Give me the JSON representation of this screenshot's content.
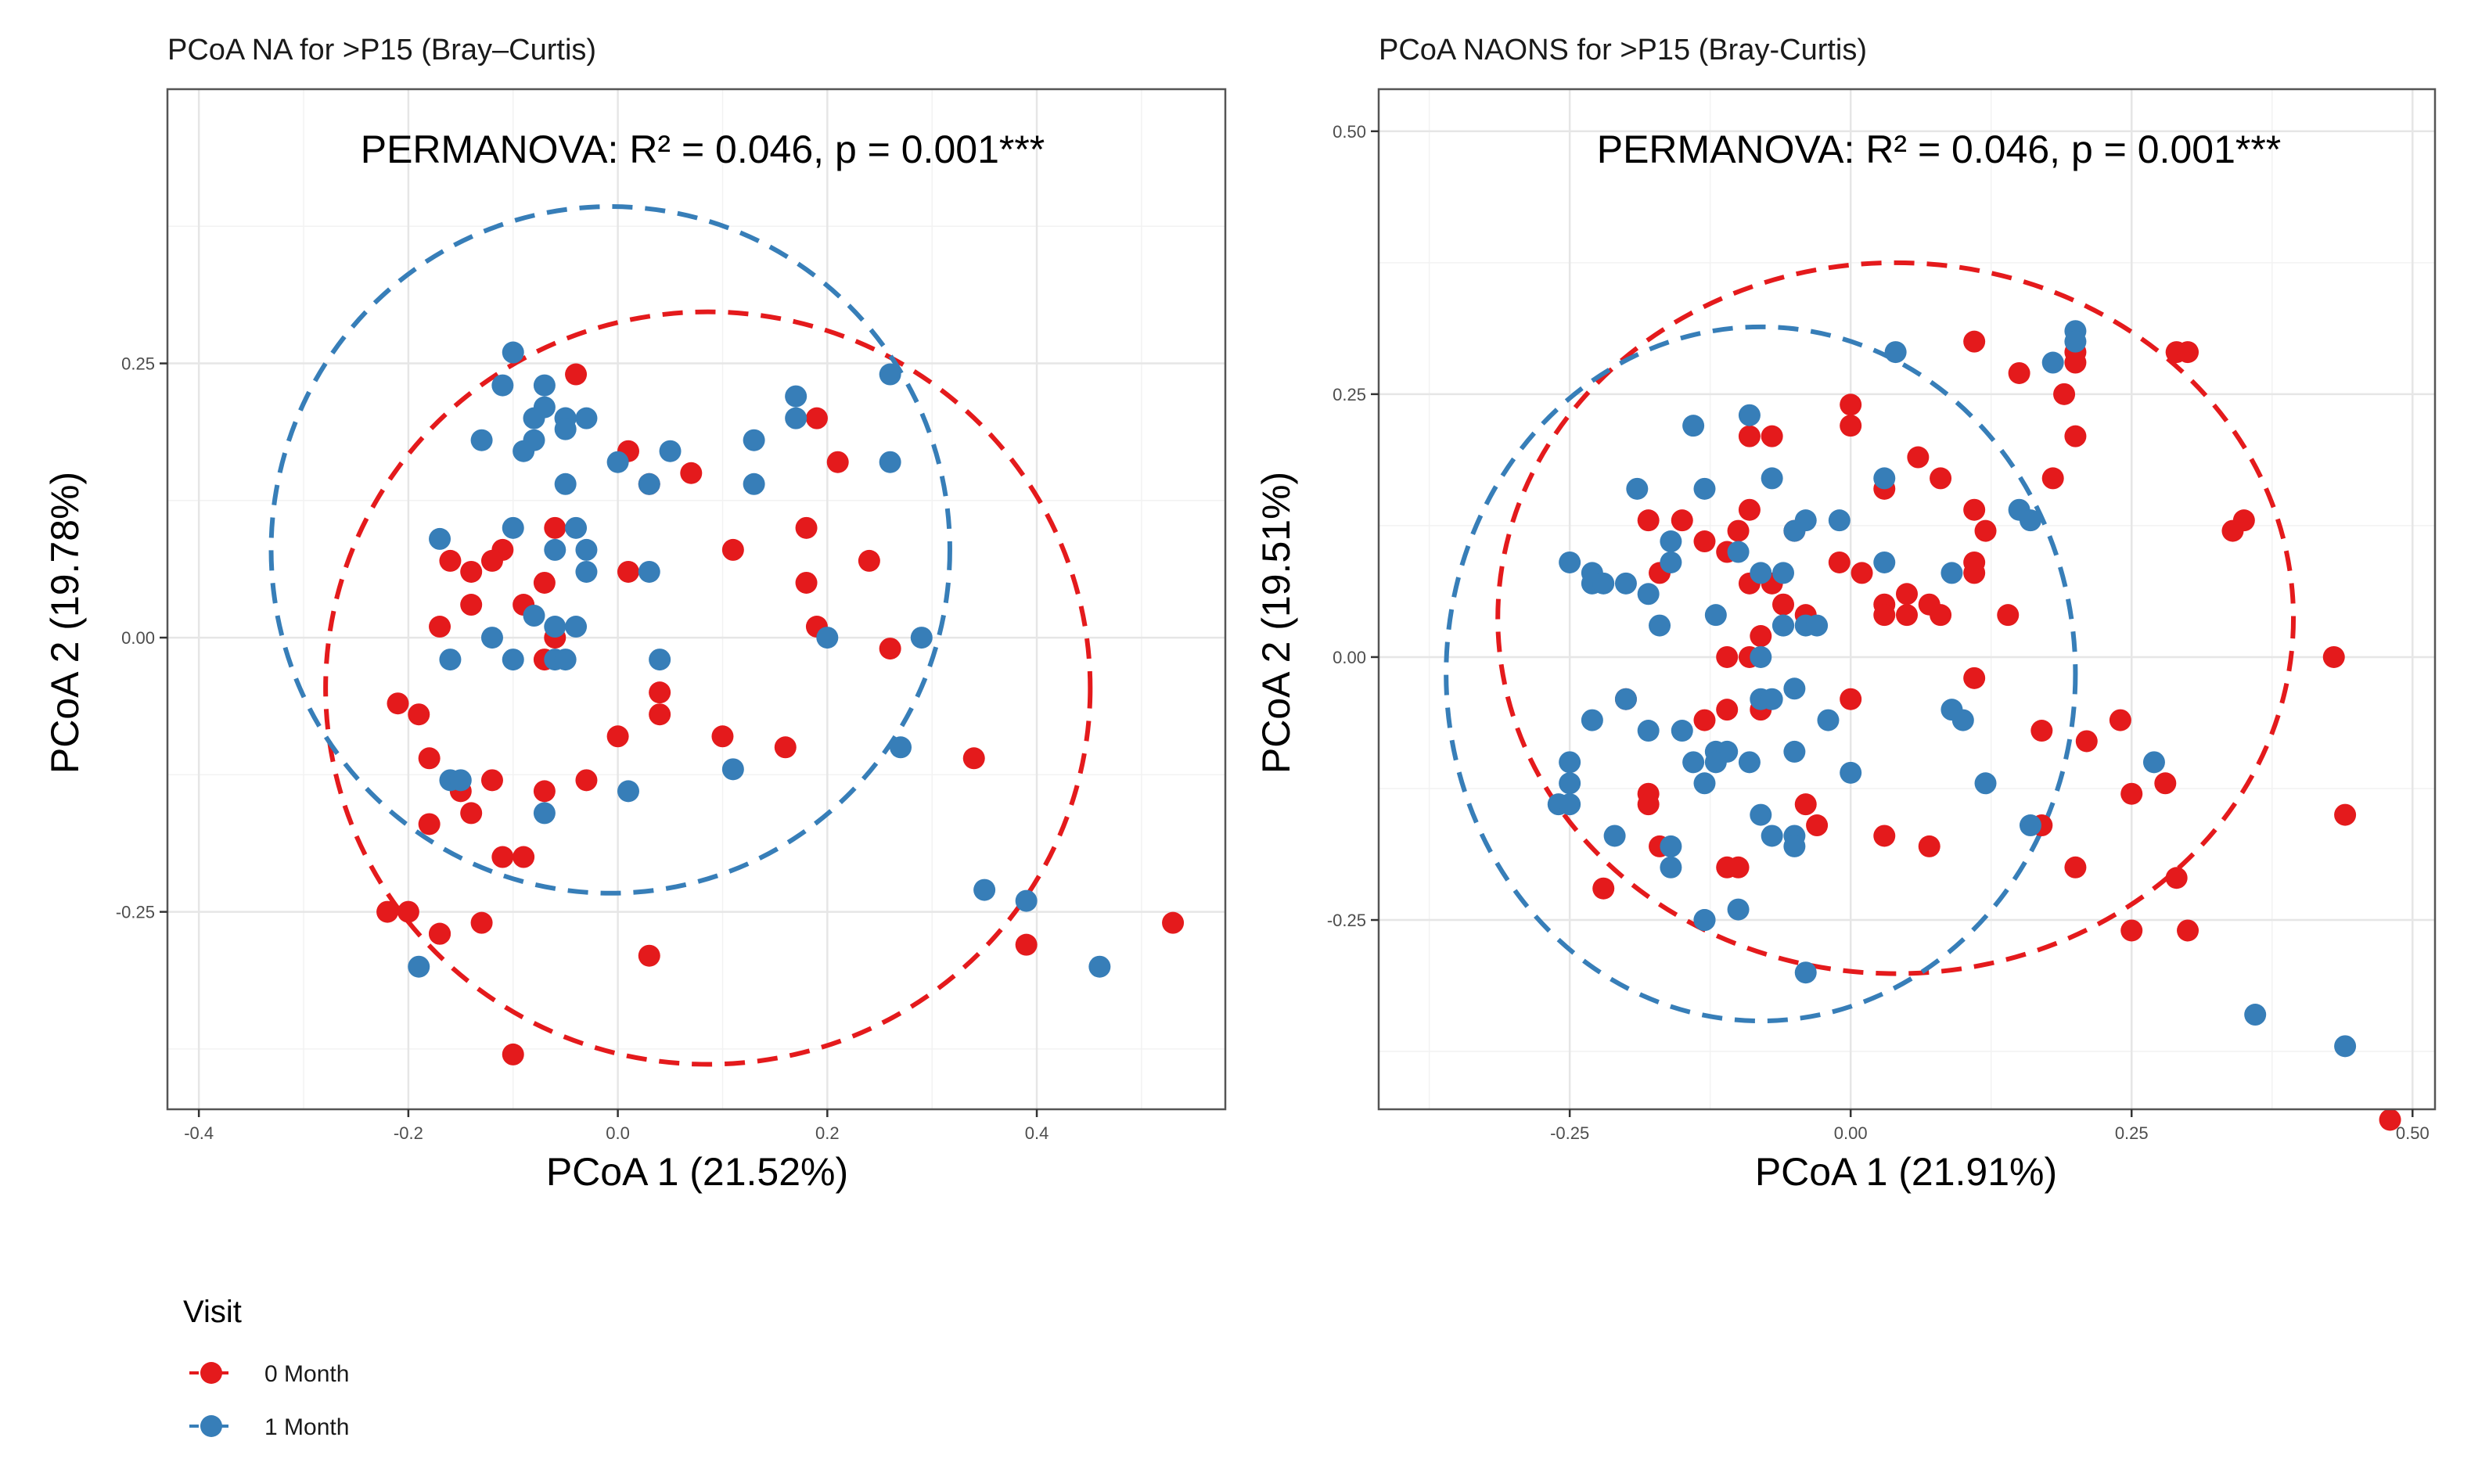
{
  "colors": {
    "visit_0": "#E41A1C",
    "visit_1": "#377EB8",
    "grid_major": "#e6e6e6",
    "grid_minor": "#f2f2f2",
    "frame": "#555555"
  },
  "legend": {
    "title": "Visit",
    "entries": [
      {
        "label": "0 Month",
        "color": "#E41A1C"
      },
      {
        "label": "1 Month",
        "color": "#377EB8"
      }
    ]
  },
  "chart_data": [
    {
      "type": "scatter",
      "title": "PCoA NA for >P15 (Bray–Curtis)",
      "annotation": "PERMANOVA: R² = 0.046, p = 0.001***",
      "xlabel": "PCoA 1 (21.52%)",
      "ylabel": "PCoA 2 (19.78%)",
      "xlim": [
        -0.43,
        0.58
      ],
      "ylim": [
        -0.43,
        0.5
      ],
      "xticks": [
        -0.4,
        -0.2,
        0.0,
        0.2,
        0.4
      ],
      "xtick_labels": [
        "-0.4",
        "-0.2",
        "0.0",
        "0.2",
        "0.4"
      ],
      "yticks": [
        -0.25,
        0.0,
        0.25
      ],
      "ytick_labels": [
        "-0.25",
        "0.00",
        "0.25"
      ],
      "grid": true,
      "ellipses": [
        {
          "series": "0 Month",
          "cx": 0.086,
          "cy": -0.046,
          "rx": 0.365,
          "ry": 0.343
        },
        {
          "series": "1 Month",
          "cx": -0.007,
          "cy": 0.08,
          "rx": 0.324,
          "ry": 0.313
        }
      ],
      "series": [
        {
          "name": "0 Month",
          "points": [
            [
              -0.16,
              0.07
            ],
            [
              -0.14,
              0.06
            ],
            [
              -0.11,
              0.08
            ],
            [
              -0.12,
              0.07
            ],
            [
              -0.14,
              0.03
            ],
            [
              -0.17,
              0.01
            ],
            [
              -0.09,
              0.03
            ],
            [
              -0.07,
              0.05
            ],
            [
              -0.06,
              0.1
            ],
            [
              -0.04,
              0.24
            ],
            [
              0.01,
              0.17
            ],
            [
              0.03,
              0.14
            ],
            [
              0.07,
              0.15
            ],
            [
              0.01,
              0.06
            ],
            [
              0.19,
              0.2
            ],
            [
              0.21,
              0.16
            ],
            [
              0.18,
              0.1
            ],
            [
              0.18,
              0.05
            ],
            [
              0.24,
              0.07
            ],
            [
              0.19,
              0.01
            ],
            [
              0.26,
              -0.01
            ],
            [
              0.11,
              0.08
            ],
            [
              -0.06,
              0.0
            ],
            [
              -0.07,
              -0.02
            ],
            [
              0.04,
              -0.05
            ],
            [
              0.04,
              -0.07
            ],
            [
              0.0,
              -0.09
            ],
            [
              0.1,
              -0.09
            ],
            [
              0.16,
              -0.1
            ],
            [
              -0.03,
              -0.13
            ],
            [
              -0.21,
              -0.06
            ],
            [
              -0.19,
              -0.07
            ],
            [
              -0.18,
              -0.11
            ],
            [
              -0.15,
              -0.14
            ],
            [
              -0.14,
              -0.16
            ],
            [
              -0.12,
              -0.13
            ],
            [
              -0.18,
              -0.17
            ],
            [
              -0.07,
              -0.14
            ],
            [
              -0.11,
              -0.2
            ],
            [
              -0.09,
              -0.2
            ],
            [
              -0.22,
              -0.25
            ],
            [
              -0.2,
              -0.25
            ],
            [
              -0.17,
              -0.27
            ],
            [
              -0.17,
              -0.27
            ],
            [
              -0.13,
              -0.26
            ],
            [
              0.03,
              -0.29
            ],
            [
              0.34,
              -0.11
            ],
            [
              0.39,
              -0.28
            ],
            [
              0.53,
              -0.26
            ],
            [
              -0.1,
              -0.38
            ]
          ]
        },
        {
          "name": "1 Month",
          "points": [
            [
              -0.1,
              0.26
            ],
            [
              -0.11,
              0.23
            ],
            [
              -0.07,
              0.23
            ],
            [
              -0.07,
              0.21
            ],
            [
              -0.08,
              0.2
            ],
            [
              -0.05,
              0.2
            ],
            [
              -0.05,
              0.2
            ],
            [
              -0.03,
              0.2
            ],
            [
              -0.05,
              0.19
            ],
            [
              -0.13,
              0.18
            ],
            [
              -0.08,
              0.18
            ],
            [
              -0.09,
              0.17
            ],
            [
              0.0,
              0.16
            ],
            [
              0.05,
              0.17
            ],
            [
              0.03,
              0.14
            ],
            [
              -0.05,
              0.14
            ],
            [
              0.17,
              0.22
            ],
            [
              0.17,
              0.2
            ],
            [
              0.13,
              0.18
            ],
            [
              0.13,
              0.14
            ],
            [
              0.26,
              0.24
            ],
            [
              0.26,
              0.16
            ],
            [
              -0.04,
              0.1
            ],
            [
              -0.06,
              0.08
            ],
            [
              -0.03,
              0.08
            ],
            [
              -0.03,
              0.06
            ],
            [
              0.03,
              0.06
            ],
            [
              -0.17,
              0.09
            ],
            [
              -0.1,
              0.1
            ],
            [
              -0.08,
              0.02
            ],
            [
              -0.16,
              -0.02
            ],
            [
              -0.12,
              0.0
            ],
            [
              -0.1,
              -0.02
            ],
            [
              -0.06,
              -0.02
            ],
            [
              -0.05,
              -0.02
            ],
            [
              -0.06,
              0.01
            ],
            [
              -0.04,
              0.01
            ],
            [
              0.04,
              -0.02
            ],
            [
              0.2,
              0.0
            ],
            [
              0.29,
              0.0
            ],
            [
              0.27,
              -0.1
            ],
            [
              0.11,
              -0.12
            ],
            [
              0.01,
              -0.14
            ],
            [
              -0.16,
              -0.13
            ],
            [
              -0.15,
              -0.13
            ],
            [
              -0.07,
              -0.16
            ],
            [
              -0.19,
              -0.3
            ],
            [
              0.35,
              -0.23
            ],
            [
              0.39,
              -0.24
            ],
            [
              0.46,
              -0.3
            ]
          ]
        }
      ]
    },
    {
      "type": "scatter",
      "title": "PCoA NAONS for >P15 (Bray-Curtis)",
      "annotation": "PERMANOVA: R² = 0.046, p = 0.001***",
      "xlabel": "PCoA 1 (21.91%)",
      "ylabel": "PCoA 2 (19.51%)",
      "xlim": [
        -0.42,
        0.52
      ],
      "ylim": [
        -0.43,
        0.54
      ],
      "xticks": [
        -0.25,
        0.0,
        0.25,
        0.5
      ],
      "xtick_labels": [
        "-0.25",
        "0.00",
        "0.25",
        "0.50"
      ],
      "yticks": [
        -0.25,
        0.0,
        0.25,
        0.5
      ],
      "ytick_labels": [
        "-0.25",
        "0.00",
        "0.25",
        "0.50"
      ],
      "grid": true,
      "ellipses": [
        {
          "series": "0 Month",
          "cx": 0.04,
          "cy": 0.037,
          "rx": 0.354,
          "ry": 0.338
        },
        {
          "series": "1 Month",
          "cx": -0.08,
          "cy": -0.016,
          "rx": 0.28,
          "ry": 0.33
        }
      ],
      "series": [
        {
          "name": "0 Month",
          "points": [
            [
              0.11,
              0.3
            ],
            [
              0.15,
              0.27
            ],
            [
              0.2,
              0.29
            ],
            [
              0.2,
              0.28
            ],
            [
              0.19,
              0.25
            ],
            [
              0.2,
              0.21
            ],
            [
              0.18,
              0.17
            ],
            [
              0.29,
              0.29
            ],
            [
              0.3,
              0.29
            ],
            [
              0.34,
              0.12
            ],
            [
              0.35,
              0.13
            ],
            [
              0.0,
              0.24
            ],
            [
              0.0,
              0.22
            ],
            [
              0.06,
              0.19
            ],
            [
              0.08,
              0.17
            ],
            [
              -0.09,
              0.21
            ],
            [
              -0.07,
              0.21
            ],
            [
              -0.09,
              0.14
            ],
            [
              -0.1,
              0.12
            ],
            [
              -0.05,
              0.12
            ],
            [
              0.03,
              0.16
            ],
            [
              0.11,
              0.14
            ],
            [
              0.12,
              0.12
            ],
            [
              -0.18,
              0.13
            ],
            [
              -0.15,
              0.13
            ],
            [
              -0.13,
              0.11
            ],
            [
              -0.11,
              0.1
            ],
            [
              -0.17,
              0.08
            ],
            [
              -0.09,
              0.07
            ],
            [
              -0.07,
              0.07
            ],
            [
              -0.08,
              0.02
            ],
            [
              -0.11,
              0.0
            ],
            [
              -0.09,
              0.0
            ],
            [
              -0.06,
              0.05
            ],
            [
              -0.04,
              0.04
            ],
            [
              -0.01,
              0.09
            ],
            [
              0.01,
              0.08
            ],
            [
              0.03,
              0.05
            ],
            [
              0.03,
              0.04
            ],
            [
              0.05,
              0.06
            ],
            [
              0.05,
              0.04
            ],
            [
              0.07,
              0.05
            ],
            [
              0.08,
              0.04
            ],
            [
              0.11,
              0.09
            ],
            [
              0.11,
              0.08
            ],
            [
              0.14,
              0.04
            ],
            [
              0.11,
              -0.02
            ],
            [
              0.17,
              -0.07
            ],
            [
              0.21,
              -0.08
            ],
            [
              0.24,
              -0.06
            ],
            [
              0.25,
              -0.13
            ],
            [
              0.28,
              -0.12
            ],
            [
              0.43,
              0.0
            ],
            [
              0.44,
              -0.15
            ],
            [
              0.29,
              -0.21
            ],
            [
              0.3,
              -0.26
            ],
            [
              0.25,
              -0.26
            ],
            [
              0.2,
              -0.2
            ],
            [
              0.17,
              -0.16
            ],
            [
              -0.2,
              -0.04
            ],
            [
              -0.13,
              -0.06
            ],
            [
              -0.11,
              -0.05
            ],
            [
              -0.08,
              -0.05
            ],
            [
              0.0,
              -0.04
            ],
            [
              -0.18,
              -0.13
            ],
            [
              -0.18,
              -0.14
            ],
            [
              -0.17,
              -0.18
            ],
            [
              -0.11,
              -0.2
            ],
            [
              -0.04,
              -0.14
            ],
            [
              -0.03,
              -0.16
            ],
            [
              0.03,
              -0.17
            ],
            [
              0.07,
              -0.18
            ],
            [
              -0.1,
              -0.2
            ],
            [
              -0.22,
              -0.22
            ],
            [
              0.48,
              -0.44
            ]
          ]
        },
        {
          "name": "1 Month",
          "points": [
            [
              0.04,
              0.29
            ],
            [
              0.2,
              0.31
            ],
            [
              0.2,
              0.3
            ],
            [
              0.18,
              0.28
            ],
            [
              -0.14,
              0.22
            ],
            [
              -0.09,
              0.23
            ],
            [
              -0.07,
              0.17
            ],
            [
              -0.19,
              0.16
            ],
            [
              -0.13,
              0.16
            ],
            [
              -0.16,
              0.11
            ],
            [
              -0.1,
              0.1
            ],
            [
              -0.08,
              0.08
            ],
            [
              -0.06,
              0.08
            ],
            [
              -0.05,
              0.12
            ],
            [
              -0.04,
              0.13
            ],
            [
              -0.01,
              0.13
            ],
            [
              0.03,
              0.17
            ],
            [
              0.03,
              0.09
            ],
            [
              0.09,
              0.08
            ],
            [
              0.15,
              0.14
            ],
            [
              0.16,
              0.13
            ],
            [
              -0.25,
              0.09
            ],
            [
              -0.23,
              0.08
            ],
            [
              -0.23,
              0.07
            ],
            [
              -0.22,
              0.07
            ],
            [
              -0.2,
              0.07
            ],
            [
              -0.18,
              0.06
            ],
            [
              -0.16,
              0.09
            ],
            [
              -0.17,
              0.03
            ],
            [
              -0.12,
              0.04
            ],
            [
              -0.08,
              0.0
            ],
            [
              -0.06,
              0.03
            ],
            [
              -0.04,
              0.03
            ],
            [
              -0.03,
              0.03
            ],
            [
              -0.06,
              0.03
            ],
            [
              -0.2,
              -0.04
            ],
            [
              -0.23,
              -0.06
            ],
            [
              -0.18,
              -0.07
            ],
            [
              -0.15,
              -0.07
            ],
            [
              -0.08,
              -0.04
            ],
            [
              -0.07,
              -0.04
            ],
            [
              -0.05,
              -0.03
            ],
            [
              -0.02,
              -0.06
            ],
            [
              -0.12,
              -0.09
            ],
            [
              -0.11,
              -0.09
            ],
            [
              -0.14,
              -0.1
            ],
            [
              -0.12,
              -0.1
            ],
            [
              -0.09,
              -0.1
            ],
            [
              -0.05,
              -0.09
            ],
            [
              0.0,
              -0.11
            ],
            [
              0.09,
              -0.05
            ],
            [
              0.1,
              -0.06
            ],
            [
              0.12,
              -0.12
            ],
            [
              -0.25,
              -0.1
            ],
            [
              -0.26,
              -0.14
            ],
            [
              -0.25,
              -0.12
            ],
            [
              -0.25,
              -0.14
            ],
            [
              -0.21,
              -0.17
            ],
            [
              -0.16,
              -0.18
            ],
            [
              -0.16,
              -0.2
            ],
            [
              -0.13,
              -0.12
            ],
            [
              -0.08,
              -0.15
            ],
            [
              -0.07,
              -0.17
            ],
            [
              -0.05,
              -0.17
            ],
            [
              -0.05,
              -0.18
            ],
            [
              -0.13,
              -0.25
            ],
            [
              -0.13,
              -0.25
            ],
            [
              -0.1,
              -0.24
            ],
            [
              -0.04,
              -0.3
            ],
            [
              0.16,
              -0.16
            ],
            [
              0.27,
              -0.1
            ],
            [
              0.36,
              -0.34
            ],
            [
              0.44,
              -0.37
            ]
          ]
        }
      ]
    }
  ]
}
